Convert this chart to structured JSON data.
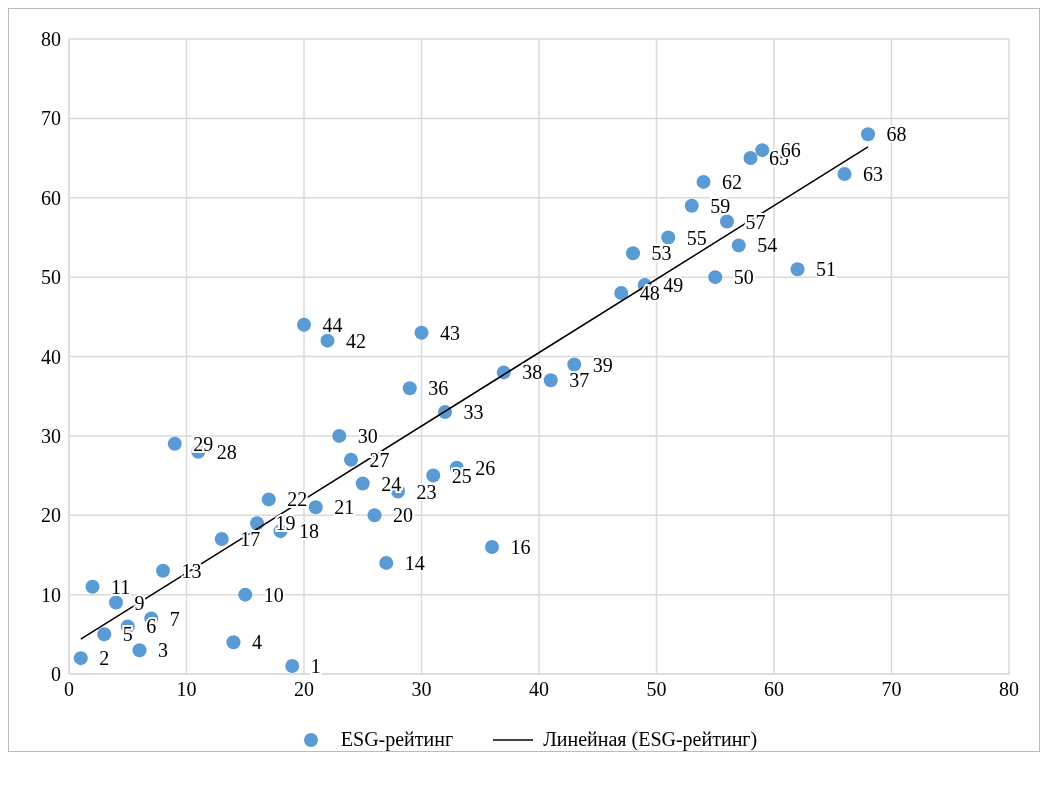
{
  "chart_data": {
    "type": "scatter",
    "xlim": [
      0,
      80
    ],
    "ylim": [
      0,
      80
    ],
    "xticks": [
      0,
      10,
      20,
      30,
      40,
      50,
      60,
      70,
      80
    ],
    "yticks": [
      0,
      10,
      20,
      30,
      40,
      50,
      60,
      70,
      80
    ],
    "grid": true,
    "legend": "bottom",
    "marker": "circle",
    "series": [
      {
        "name": "ESG-рейтинг",
        "color": "#5b9bd5",
        "value_labels": [
          "1",
          "2",
          "3",
          "4",
          "5",
          "6",
          "7",
          "9",
          "10",
          "11",
          "13",
          "14",
          "16",
          "17",
          "18",
          "19",
          "20",
          "21",
          "22",
          "23",
          "24",
          "25",
          "26",
          "27",
          "28",
          "29",
          "30",
          "33",
          "36",
          "37",
          "38",
          "39",
          "42",
          "43",
          "44",
          "48",
          "49",
          "50",
          "51",
          "53",
          "54",
          "55",
          "57",
          "59",
          "62",
          "63",
          "65",
          "66",
          "68"
        ],
        "x": [
          19,
          1,
          6,
          14,
          3,
          5,
          7,
          4,
          15,
          2,
          8,
          27,
          36,
          13,
          18,
          16,
          26,
          21,
          17,
          28,
          25,
          31,
          33,
          24,
          11,
          9,
          23,
          32,
          29,
          41,
          37,
          43,
          22,
          30,
          20,
          47,
          49,
          55,
          62,
          48,
          57,
          51,
          56,
          53,
          54,
          66,
          58,
          59,
          68
        ],
        "values": [
          1,
          2,
          3,
          4,
          5,
          6,
          7,
          9,
          10,
          11,
          13,
          14,
          16,
          17,
          18,
          19,
          20,
          21,
          22,
          23,
          24,
          25,
          26,
          27,
          28,
          29,
          30,
          33,
          36,
          37,
          38,
          39,
          42,
          43,
          44,
          48,
          49,
          50,
          51,
          53,
          54,
          55,
          57,
          59,
          62,
          63,
          65,
          66,
          68
        ]
      },
      {
        "name": "Линейная (ESG-рейтинг)",
        "color": "#000000",
        "type": "line",
        "line_style": "solid",
        "marker": "none",
        "x": [
          1,
          68
        ],
        "values": [
          4.4,
          66.4
        ]
      }
    ]
  }
}
